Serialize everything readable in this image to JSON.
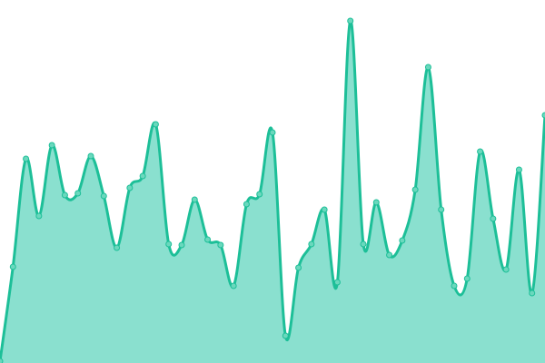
{
  "chart_data": {
    "type": "area",
    "title": "",
    "xlabel": "",
    "ylabel": "",
    "grid": false,
    "legend": "none",
    "ylim": [
      0,
      400
    ],
    "x": [
      0,
      1,
      2,
      3,
      4,
      5,
      6,
      7,
      8,
      9,
      10,
      11,
      12,
      13,
      14,
      15,
      16,
      17,
      18,
      19,
      20,
      21,
      22,
      23,
      24,
      25,
      26,
      27,
      28,
      29,
      30,
      31,
      32,
      33,
      34,
      35,
      36,
      37,
      38,
      39,
      40,
      41,
      42
    ],
    "values": [
      2,
      106,
      225,
      162,
      240,
      185,
      187,
      228,
      184,
      127,
      193,
      206,
      263,
      131,
      130,
      180,
      136,
      130,
      85,
      175,
      186,
      254,
      30,
      105,
      131,
      169,
      89,
      377,
      131,
      177,
      119,
      135,
      191,
      326,
      169,
      85,
      93,
      233,
      159,
      103,
      213,
      77,
      273
    ],
    "colors": {
      "line": "#1dbf98",
      "fill": "#8ae0cf",
      "point": "#6ad8bd"
    }
  }
}
